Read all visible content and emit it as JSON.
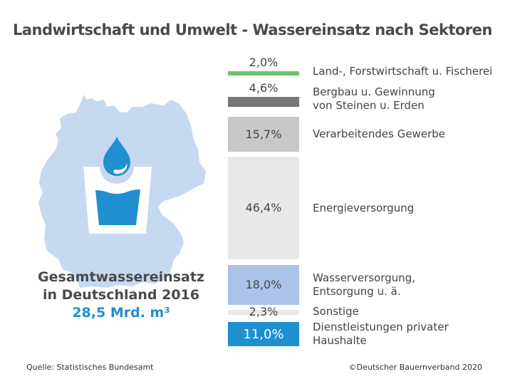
{
  "title": "Landwirtschaft und Umwelt - Wassereinsatz nach Sektoren",
  "total": {
    "line1": "Gesamtwassereinsatz",
    "line2": "in Deutschland 2016",
    "value": "28,5 Mrd. m³"
  },
  "source": "Quelle: Statistisches Bundesamt",
  "copyright": "©Deutscher Bauernverband 2020",
  "icons": [
    "germany-map",
    "water-drop-icon",
    "water-glass-icon"
  ],
  "colors": {
    "map": "#c6d9f0",
    "blue": "#1f8fcf",
    "text": "#4a4a4a"
  },
  "chart_data": {
    "type": "bar",
    "title": "Landwirtschaft und Umwelt - Wassereinsatz nach Sektoren",
    "unit": "%",
    "categories": [
      [
        "Land-, Forstwirtschaft u. Fischerei"
      ],
      [
        "Bergbau u. Gewinnung",
        "von Steinen u. Erden"
      ],
      [
        "Verarbeitendes Gewerbe"
      ],
      [
        "Energieversorgung"
      ],
      [
        "Wasserversorgung,",
        "Entsorgung u. ä."
      ],
      [
        "Sonstige"
      ],
      [
        "Dienstleistungen privater",
        "Haushalte"
      ]
    ],
    "values": [
      2.0,
      4.6,
      15.7,
      46.4,
      18.0,
      2.3,
      11.0
    ],
    "labels": [
      "2,0%",
      "4,6%",
      "15,7%",
      "46,4%",
      "18,0%",
      "2,3%",
      "11,0%"
    ],
    "colors": [
      "#6cc26a",
      "#777777",
      "#c8c8c8",
      "#e8e8e8",
      "#a9c4e8",
      "#e8e8e8",
      "#1f8fcf"
    ]
  }
}
